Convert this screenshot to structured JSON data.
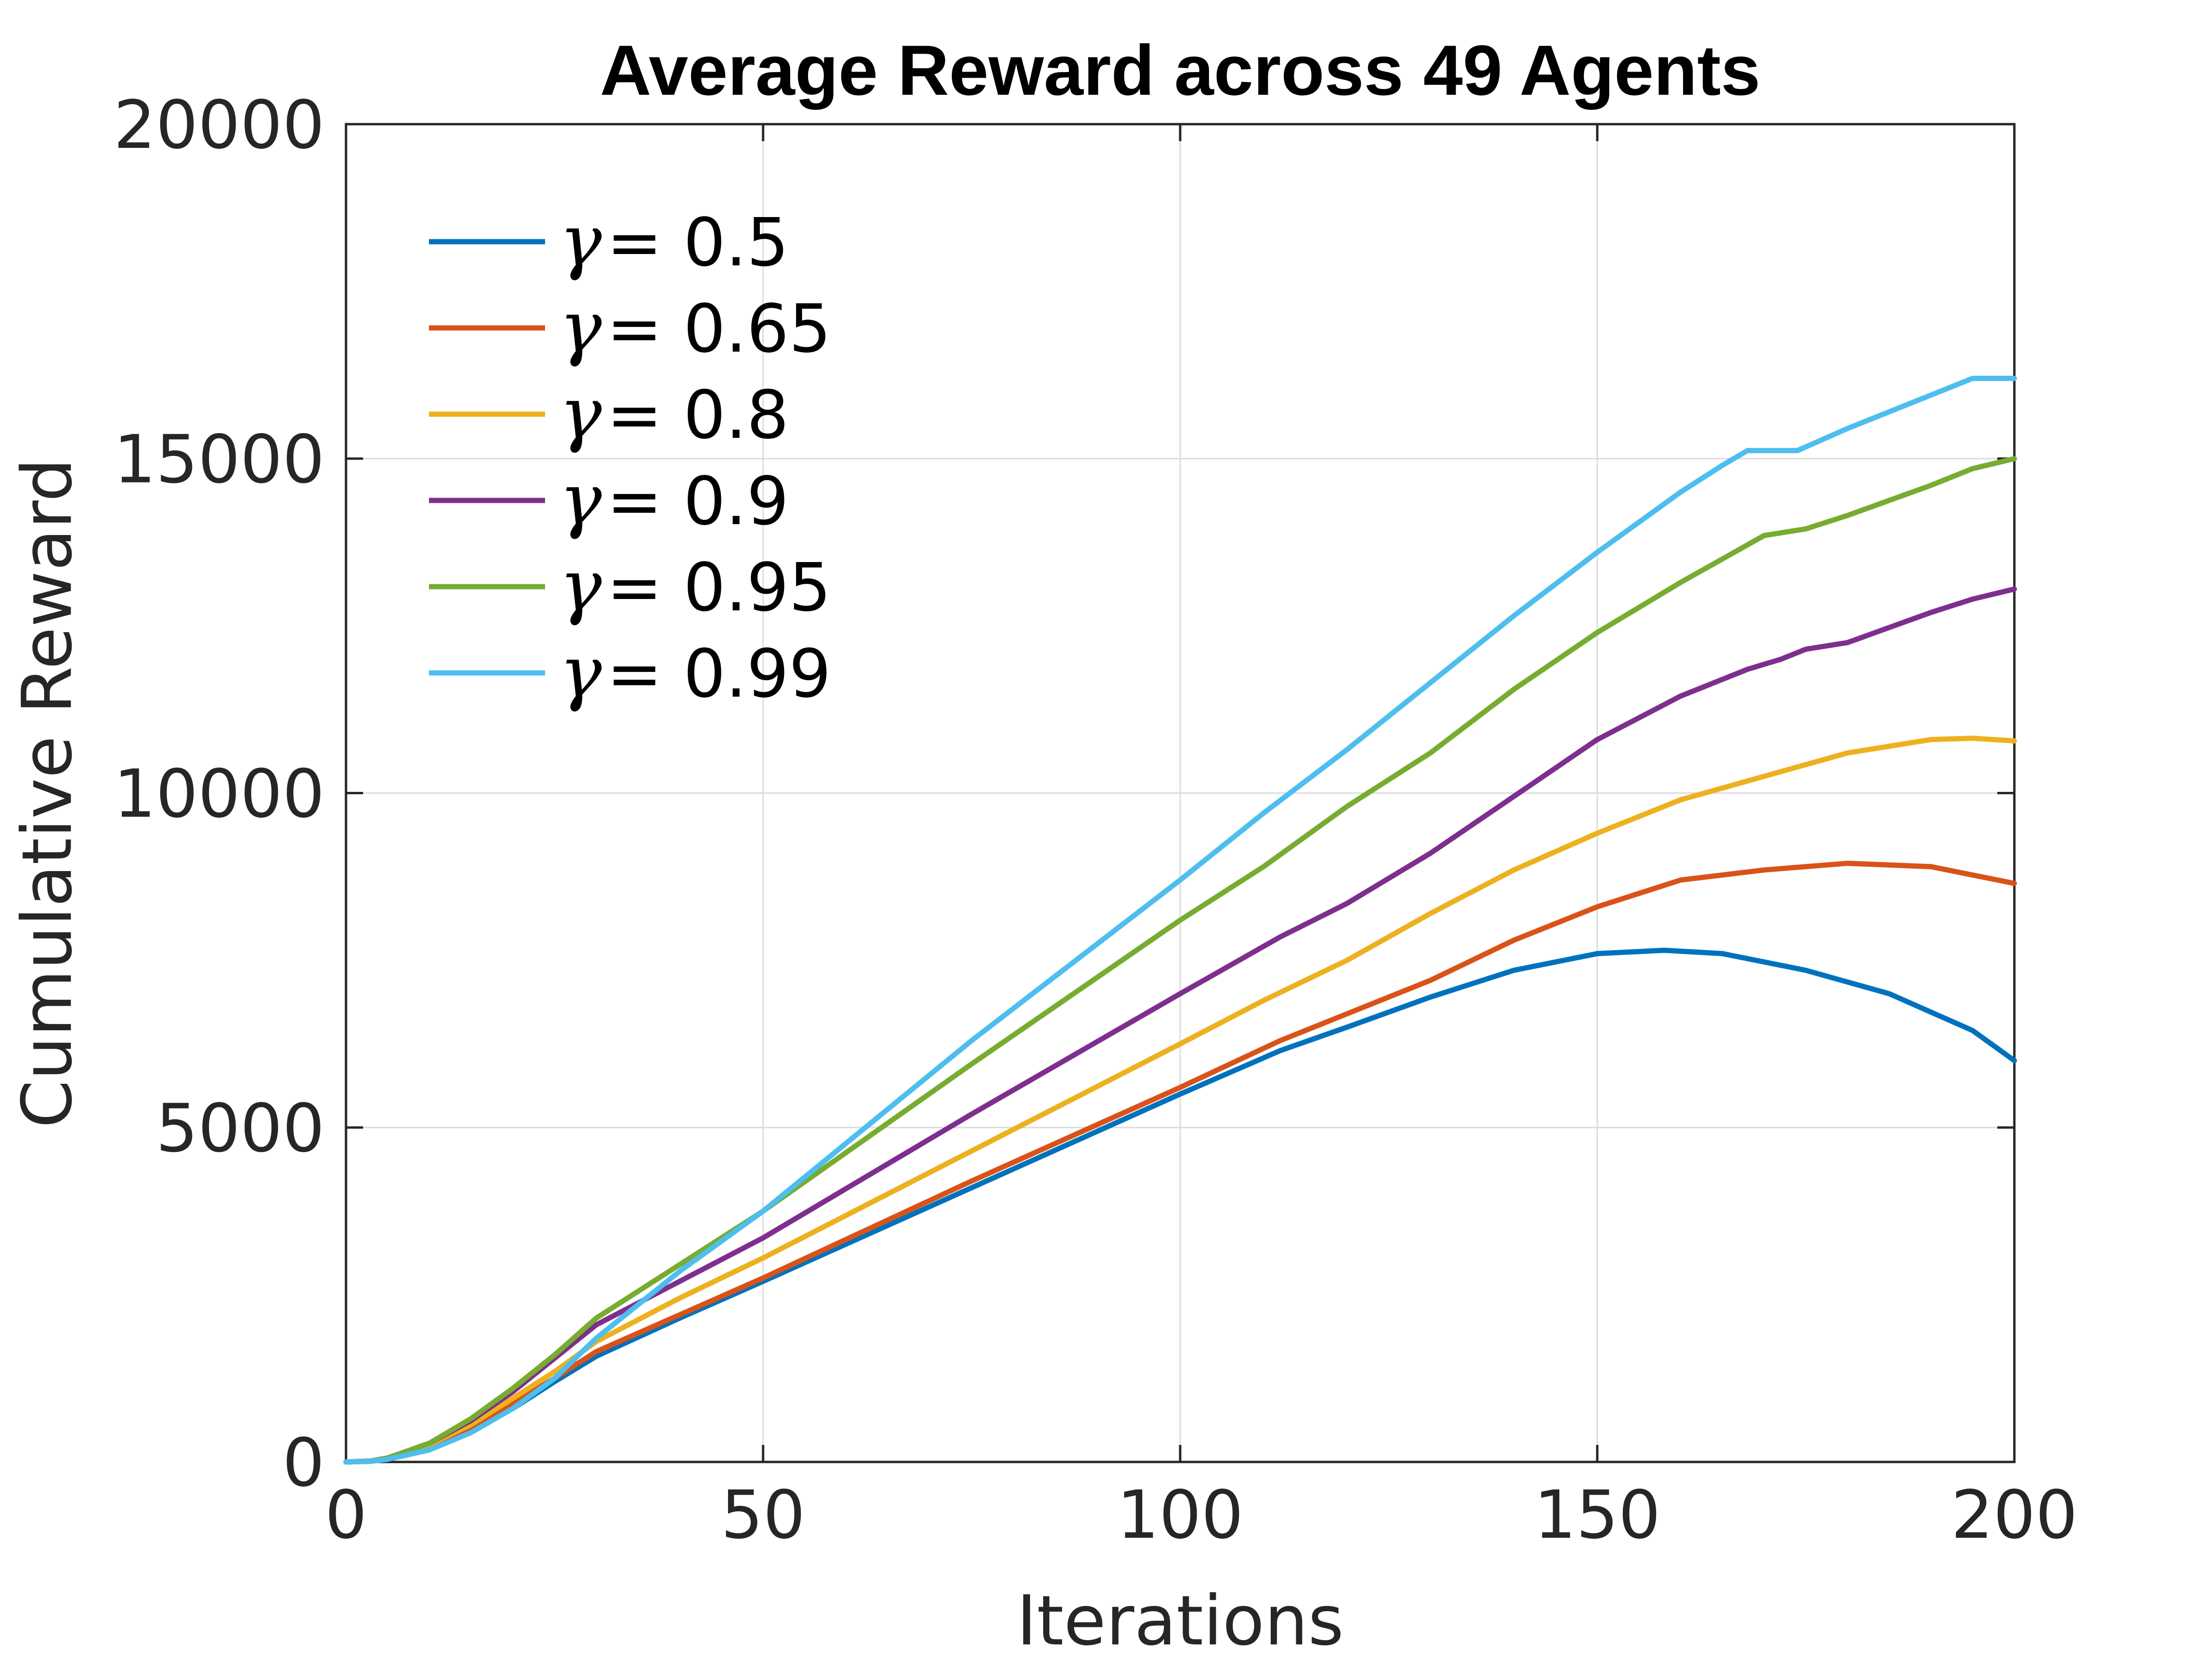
{
  "chart_data": {
    "type": "line",
    "title": "Average Reward across 49 Agents",
    "xlabel": "Iterations",
    "ylabel": "Cumulative Reward",
    "xlim": [
      0,
      200
    ],
    "ylim": [
      0,
      20000
    ],
    "xticks": [
      0,
      50,
      100,
      150,
      200
    ],
    "yticks": [
      0,
      5000,
      10000,
      15000,
      20000
    ],
    "xtick_labels": [
      "0",
      "50",
      "100",
      "150",
      "200"
    ],
    "ytick_labels": [
      "0",
      "5000",
      "10000",
      "15000",
      "20000"
    ],
    "grid": true,
    "legend_position": "top-left",
    "legend_symbol": "γ",
    "series": [
      {
        "name": "= 0.5",
        "color": "#0072BD",
        "points": [
          [
            0,
            0
          ],
          [
            3,
            10
          ],
          [
            5,
            50
          ],
          [
            10,
            200
          ],
          [
            15,
            450
          ],
          [
            20,
            800
          ],
          [
            25,
            1200
          ],
          [
            30,
            1580
          ],
          [
            40,
            2150
          ],
          [
            50,
            2700
          ],
          [
            75,
            4100
          ],
          [
            100,
            5500
          ],
          [
            112,
            6150
          ],
          [
            120,
            6500
          ],
          [
            130,
            6950
          ],
          [
            140,
            7350
          ],
          [
            150,
            7600
          ],
          [
            158,
            7650
          ],
          [
            165,
            7600
          ],
          [
            175,
            7350
          ],
          [
            185,
            7000
          ],
          [
            195,
            6450
          ],
          [
            200,
            6000
          ]
        ]
      },
      {
        "name": "= 0.65",
        "color": "#D95319",
        "points": [
          [
            0,
            0
          ],
          [
            3,
            15
          ],
          [
            5,
            60
          ],
          [
            10,
            250
          ],
          [
            15,
            520
          ],
          [
            20,
            880
          ],
          [
            25,
            1250
          ],
          [
            30,
            1650
          ],
          [
            40,
            2200
          ],
          [
            50,
            2750
          ],
          [
            75,
            4200
          ],
          [
            100,
            5600
          ],
          [
            112,
            6300
          ],
          [
            120,
            6700
          ],
          [
            130,
            7200
          ],
          [
            140,
            7800
          ],
          [
            150,
            8300
          ],
          [
            160,
            8700
          ],
          [
            170,
            8850
          ],
          [
            180,
            8950
          ],
          [
            190,
            8900
          ],
          [
            200,
            8650
          ]
        ]
      },
      {
        "name": "= 0.8",
        "color": "#EDB120",
        "points": [
          [
            0,
            0
          ],
          [
            3,
            15
          ],
          [
            5,
            60
          ],
          [
            10,
            260
          ],
          [
            15,
            560
          ],
          [
            20,
            950
          ],
          [
            25,
            1350
          ],
          [
            30,
            1800
          ],
          [
            40,
            2450
          ],
          [
            50,
            3050
          ],
          [
            75,
            4650
          ],
          [
            100,
            6250
          ],
          [
            110,
            6900
          ],
          [
            120,
            7500
          ],
          [
            130,
            8200
          ],
          [
            140,
            8850
          ],
          [
            150,
            9400
          ],
          [
            160,
            9900
          ],
          [
            170,
            10250
          ],
          [
            180,
            10600
          ],
          [
            190,
            10800
          ],
          [
            195,
            10820
          ],
          [
            200,
            10780
          ]
        ]
      },
      {
        "name": "= 0.9",
        "color": "#7E2F8E",
        "points": [
          [
            0,
            0
          ],
          [
            3,
            15
          ],
          [
            5,
            60
          ],
          [
            10,
            280
          ],
          [
            15,
            620
          ],
          [
            20,
            1050
          ],
          [
            25,
            1550
          ],
          [
            30,
            2050
          ],
          [
            40,
            2700
          ],
          [
            50,
            3350
          ],
          [
            75,
            5200
          ],
          [
            100,
            7000
          ],
          [
            112,
            7850
          ],
          [
            120,
            8350
          ],
          [
            130,
            9100
          ],
          [
            140,
            9950
          ],
          [
            150,
            10800
          ],
          [
            160,
            11450
          ],
          [
            168,
            11850
          ],
          [
            172,
            12000
          ],
          [
            175,
            12150
          ],
          [
            180,
            12250
          ],
          [
            190,
            12700
          ],
          [
            195,
            12900
          ],
          [
            200,
            13050
          ]
        ]
      },
      {
        "name": "= 0.95",
        "color": "#77AC30",
        "points": [
          [
            0,
            0
          ],
          [
            3,
            15
          ],
          [
            5,
            60
          ],
          [
            10,
            280
          ],
          [
            15,
            650
          ],
          [
            20,
            1100
          ],
          [
            25,
            1600
          ],
          [
            30,
            2150
          ],
          [
            40,
            2950
          ],
          [
            50,
            3750
          ],
          [
            75,
            5950
          ],
          [
            100,
            8100
          ],
          [
            110,
            8900
          ],
          [
            120,
            9800
          ],
          [
            130,
            10600
          ],
          [
            140,
            11550
          ],
          [
            150,
            12400
          ],
          [
            160,
            13150
          ],
          [
            165,
            13500
          ],
          [
            170,
            13850
          ],
          [
            175,
            13950
          ],
          [
            180,
            14150
          ],
          [
            190,
            14600
          ],
          [
            195,
            14850
          ],
          [
            200,
            15000
          ]
        ]
      },
      {
        "name": "= 0.99",
        "color": "#4DBEEE",
        "points": [
          [
            0,
            0
          ],
          [
            3,
            10
          ],
          [
            5,
            40
          ],
          [
            10,
            180
          ],
          [
            15,
            440
          ],
          [
            20,
            800
          ],
          [
            25,
            1250
          ],
          [
            30,
            1850
          ],
          [
            40,
            2850
          ],
          [
            50,
            3750
          ],
          [
            75,
            6300
          ],
          [
            100,
            8700
          ],
          [
            110,
            9700
          ],
          [
            120,
            10650
          ],
          [
            130,
            11650
          ],
          [
            140,
            12650
          ],
          [
            150,
            13600
          ],
          [
            160,
            14500
          ],
          [
            165,
            14900
          ],
          [
            168,
            15120
          ],
          [
            170,
            15120
          ],
          [
            174,
            15120
          ],
          [
            180,
            15450
          ],
          [
            190,
            15950
          ],
          [
            195,
            16200
          ],
          [
            200,
            16200
          ]
        ]
      }
    ]
  }
}
